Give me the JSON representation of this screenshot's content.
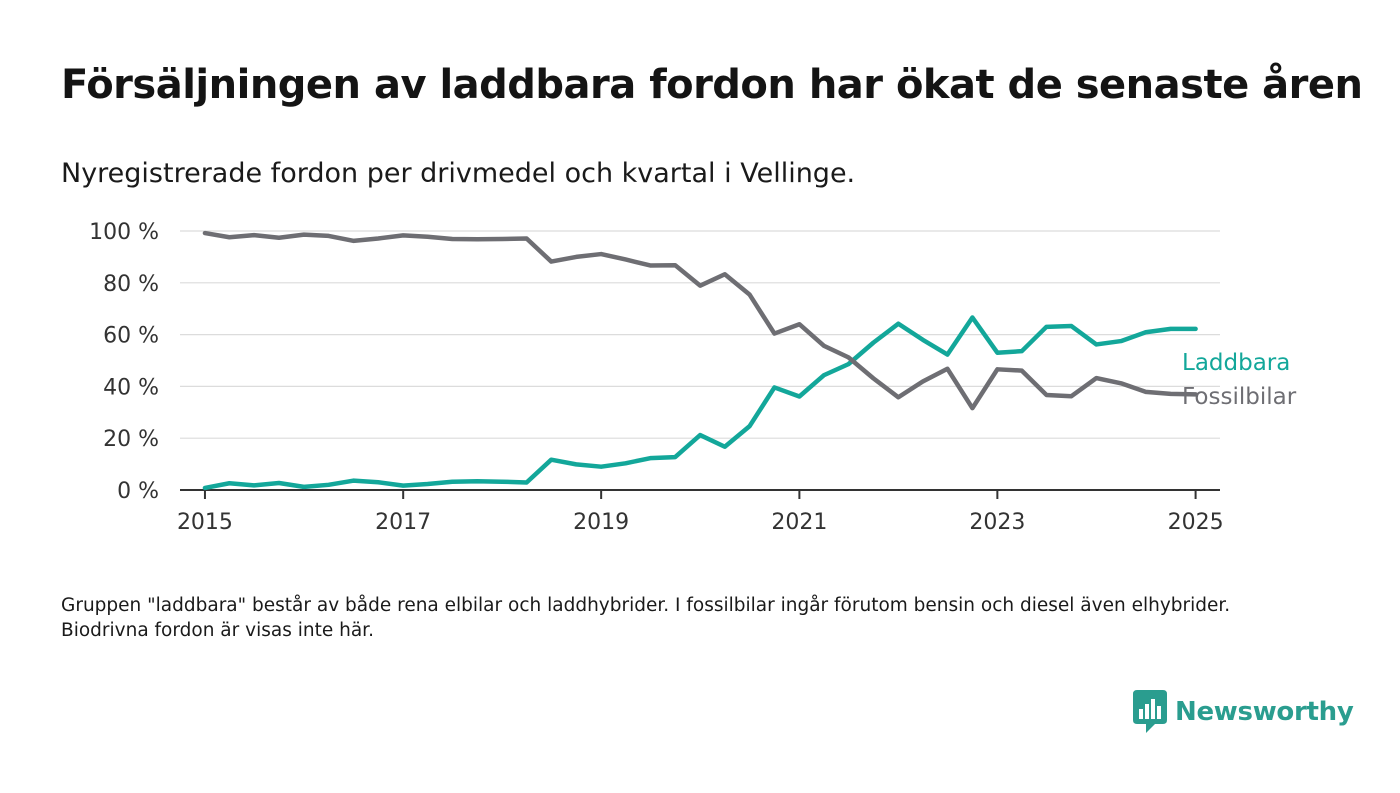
{
  "title": "Försäljningen av laddbara fordon har ökat de senaste åren",
  "subtitle": "Nyregistrerade fordon per drivmedel och kvartal i Vellinge.",
  "footnote": "Gruppen \"laddbara\" består av både rena elbilar och laddhybrider. I fossilbilar ingår förutom bensin och diesel även elhybrider. Biodrivna fordon är visas inte här.",
  "brand": {
    "name": "Newsworthy",
    "color": "#2a9d8f",
    "icon": "bar-chart-speech-bubble-icon"
  },
  "chart_data": {
    "type": "line",
    "title": "",
    "xlabel": "",
    "ylabel": "",
    "x_start": "2015-01-01",
    "x_interval": "quarter",
    "xlim": [
      "2014-10-01",
      "2025-04-01"
    ],
    "ylim": [
      0,
      100
    ],
    "yticks": [
      0,
      20,
      40,
      60,
      80,
      100
    ],
    "ytick_labels": [
      "0 %",
      "20 %",
      "40 %",
      "60 %",
      "80 %",
      "100 %"
    ],
    "xticks": [
      "2015-01-01",
      "2017-01-01",
      "2019-01-01",
      "2021-01-01",
      "2023-01-01",
      "2025-01-01"
    ],
    "xtick_labels": [
      "2015",
      "2017",
      "2019",
      "2021",
      "2023",
      "2025"
    ],
    "grid": true,
    "legend": "direct-labels-right",
    "series": [
      {
        "name": "Laddbara",
        "color": "#13a79a",
        "values": [
          0.8,
          2.6,
          1.8,
          2.7,
          1.2,
          2.0,
          3.6,
          3.0,
          1.7,
          2.3,
          3.2,
          3.4,
          3.2,
          2.9,
          11.7,
          9.9,
          9.0,
          10.3,
          12.3,
          12.7,
          21.2,
          16.7,
          24.6,
          39.6,
          36.1,
          44.3,
          48.6,
          56.9,
          64.2,
          58.0,
          52.3,
          66.6,
          53.0,
          53.6,
          63.0,
          63.3,
          56.2,
          57.5,
          60.9,
          62.2,
          62.2
        ]
      },
      {
        "name": "Fossilbilar",
        "color": "#6e6e73",
        "values": [
          99.2,
          97.6,
          98.4,
          97.4,
          98.6,
          98.1,
          96.2,
          97.1,
          98.3,
          97.8,
          96.9,
          96.8,
          96.9,
          97.1,
          88.2,
          90.0,
          91.1,
          89.0,
          86.7,
          86.8,
          78.9,
          83.3,
          75.5,
          60.4,
          64.0,
          55.7,
          51.2,
          43.1,
          35.8,
          41.9,
          46.8,
          31.6,
          46.6,
          46.1,
          36.7,
          36.2,
          43.2,
          41.2,
          37.9,
          37.1,
          36.9
        ]
      }
    ]
  }
}
